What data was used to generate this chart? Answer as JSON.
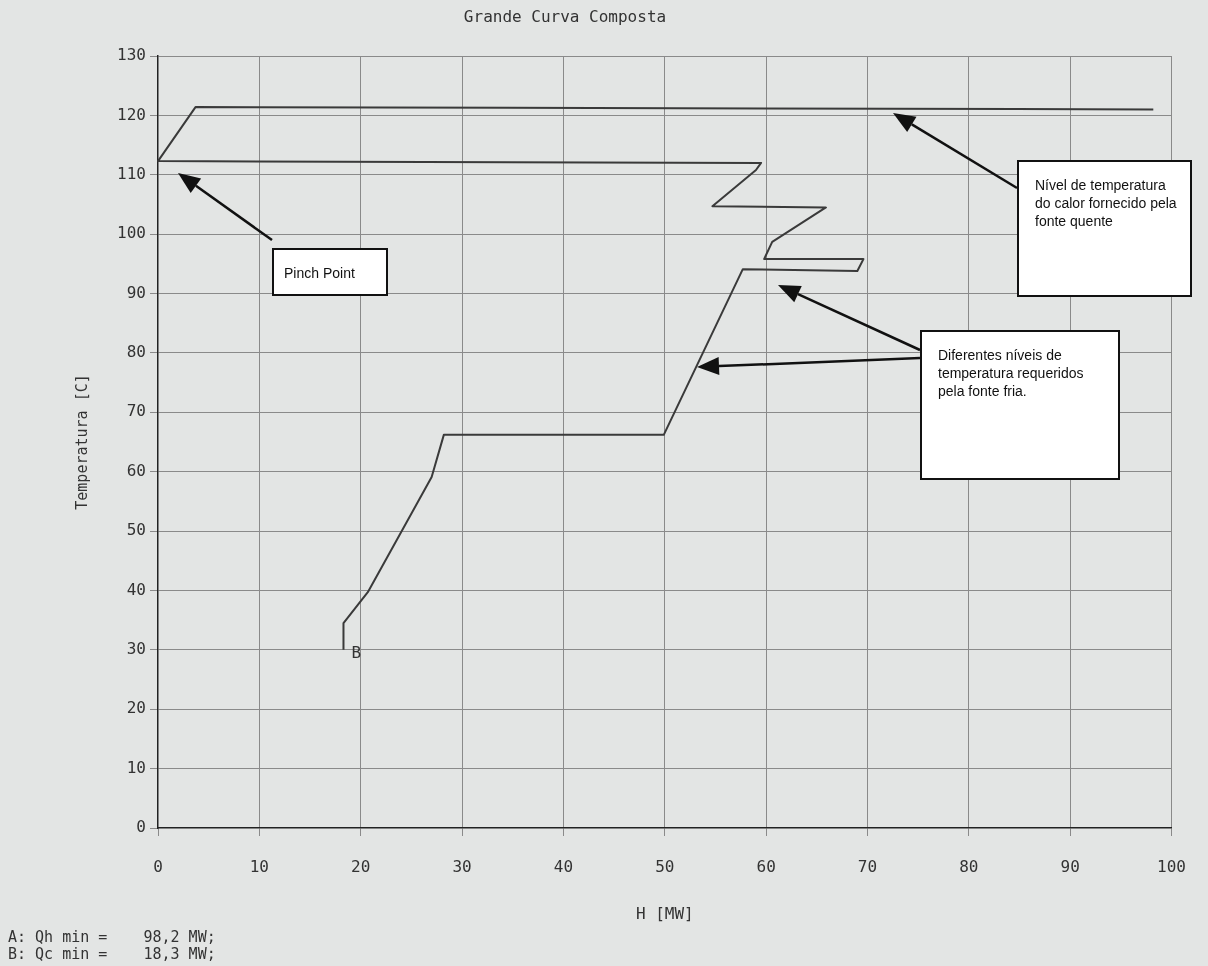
{
  "chart_data": {
    "type": "line",
    "title": "Grande Curva Composta",
    "xlabel": "H [MW]",
    "ylabel": "Temperatura [C]",
    "x": [
      18.3,
      18.3,
      20.7,
      27.0,
      28.2,
      49.9,
      57.7,
      69.0,
      69.6,
      59.8,
      60.6,
      65.9,
      54.7,
      59.0,
      59.5,
      0,
      3.7,
      98.2
    ],
    "series": [
      {
        "color": "#3a3a3a",
        "values": [
          30,
          34.5,
          39.7,
          59.1,
          66.2,
          66.2,
          94.1,
          93.8,
          95.8,
          95.8,
          98.7,
          104.5,
          104.7,
          110.8,
          112.0,
          112.3,
          121.4,
          121.0
        ]
      }
    ],
    "xlim": [
      0,
      100
    ],
    "xticks": [
      0,
      10,
      20,
      30,
      40,
      50,
      60,
      70,
      80,
      90,
      100
    ],
    "ylim": [
      0,
      130
    ],
    "yticks": [
      0,
      10,
      20,
      30,
      40,
      50,
      60,
      70,
      80,
      90,
      100,
      110,
      120,
      130
    ],
    "grid": true,
    "line_style": "solid",
    "marker": "none",
    "legend": false,
    "annotations": [
      "Pinch Point",
      "Nível de temperatura do calor fornecido pela fonte quente",
      "Diferentes níveis de temperatura requeridos pela fonte fria.",
      {
        "text": "B",
        "x": 18.3,
        "y": 30
      },
      "A: Qh min =    98,2 MW;",
      "B: Qc min =    18,3 MW;"
    ]
  }
}
